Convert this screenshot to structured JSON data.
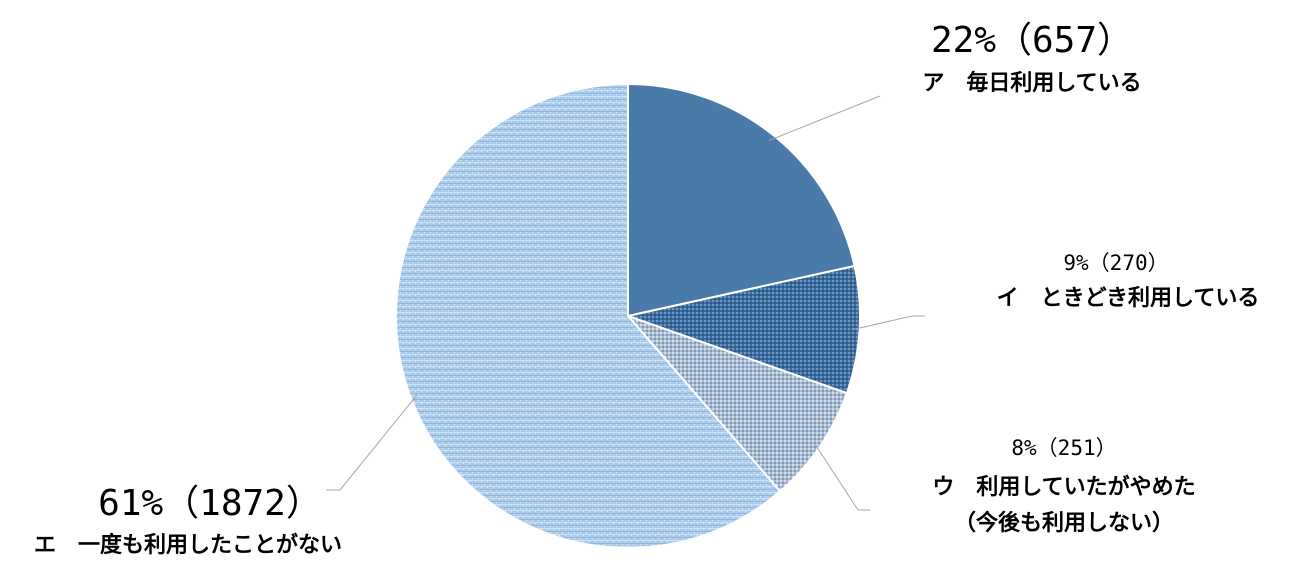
{
  "chart_data": {
    "type": "pie",
    "start_angle_deg": 0,
    "direction": "clockwise",
    "slices": [
      {
        "key": "a",
        "label": "ア　毎日利用している",
        "percent_label": "22%（657）",
        "percent": 22,
        "value": 657,
        "color": "#4a7aa8",
        "pattern": "solid"
      },
      {
        "key": "i",
        "label": "イ　ときどき利用している",
        "percent_label": "9%（270）",
        "percent": 9,
        "value": 270,
        "color": "#3d6d9e",
        "pattern": "fine-dots-dark"
      },
      {
        "key": "u",
        "label": "ウ　利用していたがやめた",
        "label_line2": "（今後も利用しない）",
        "percent_label": "8%（251）",
        "percent": 8,
        "value": 251,
        "color": "#a8bcd2",
        "pattern": "fine-dots-grey"
      },
      {
        "key": "e",
        "label": "エ　一度も利用したことがない",
        "percent_label": "61%（1872）",
        "percent": 61,
        "value": 1872,
        "color": "#a9cbec",
        "pattern": "horizontal-stripes"
      }
    ]
  }
}
